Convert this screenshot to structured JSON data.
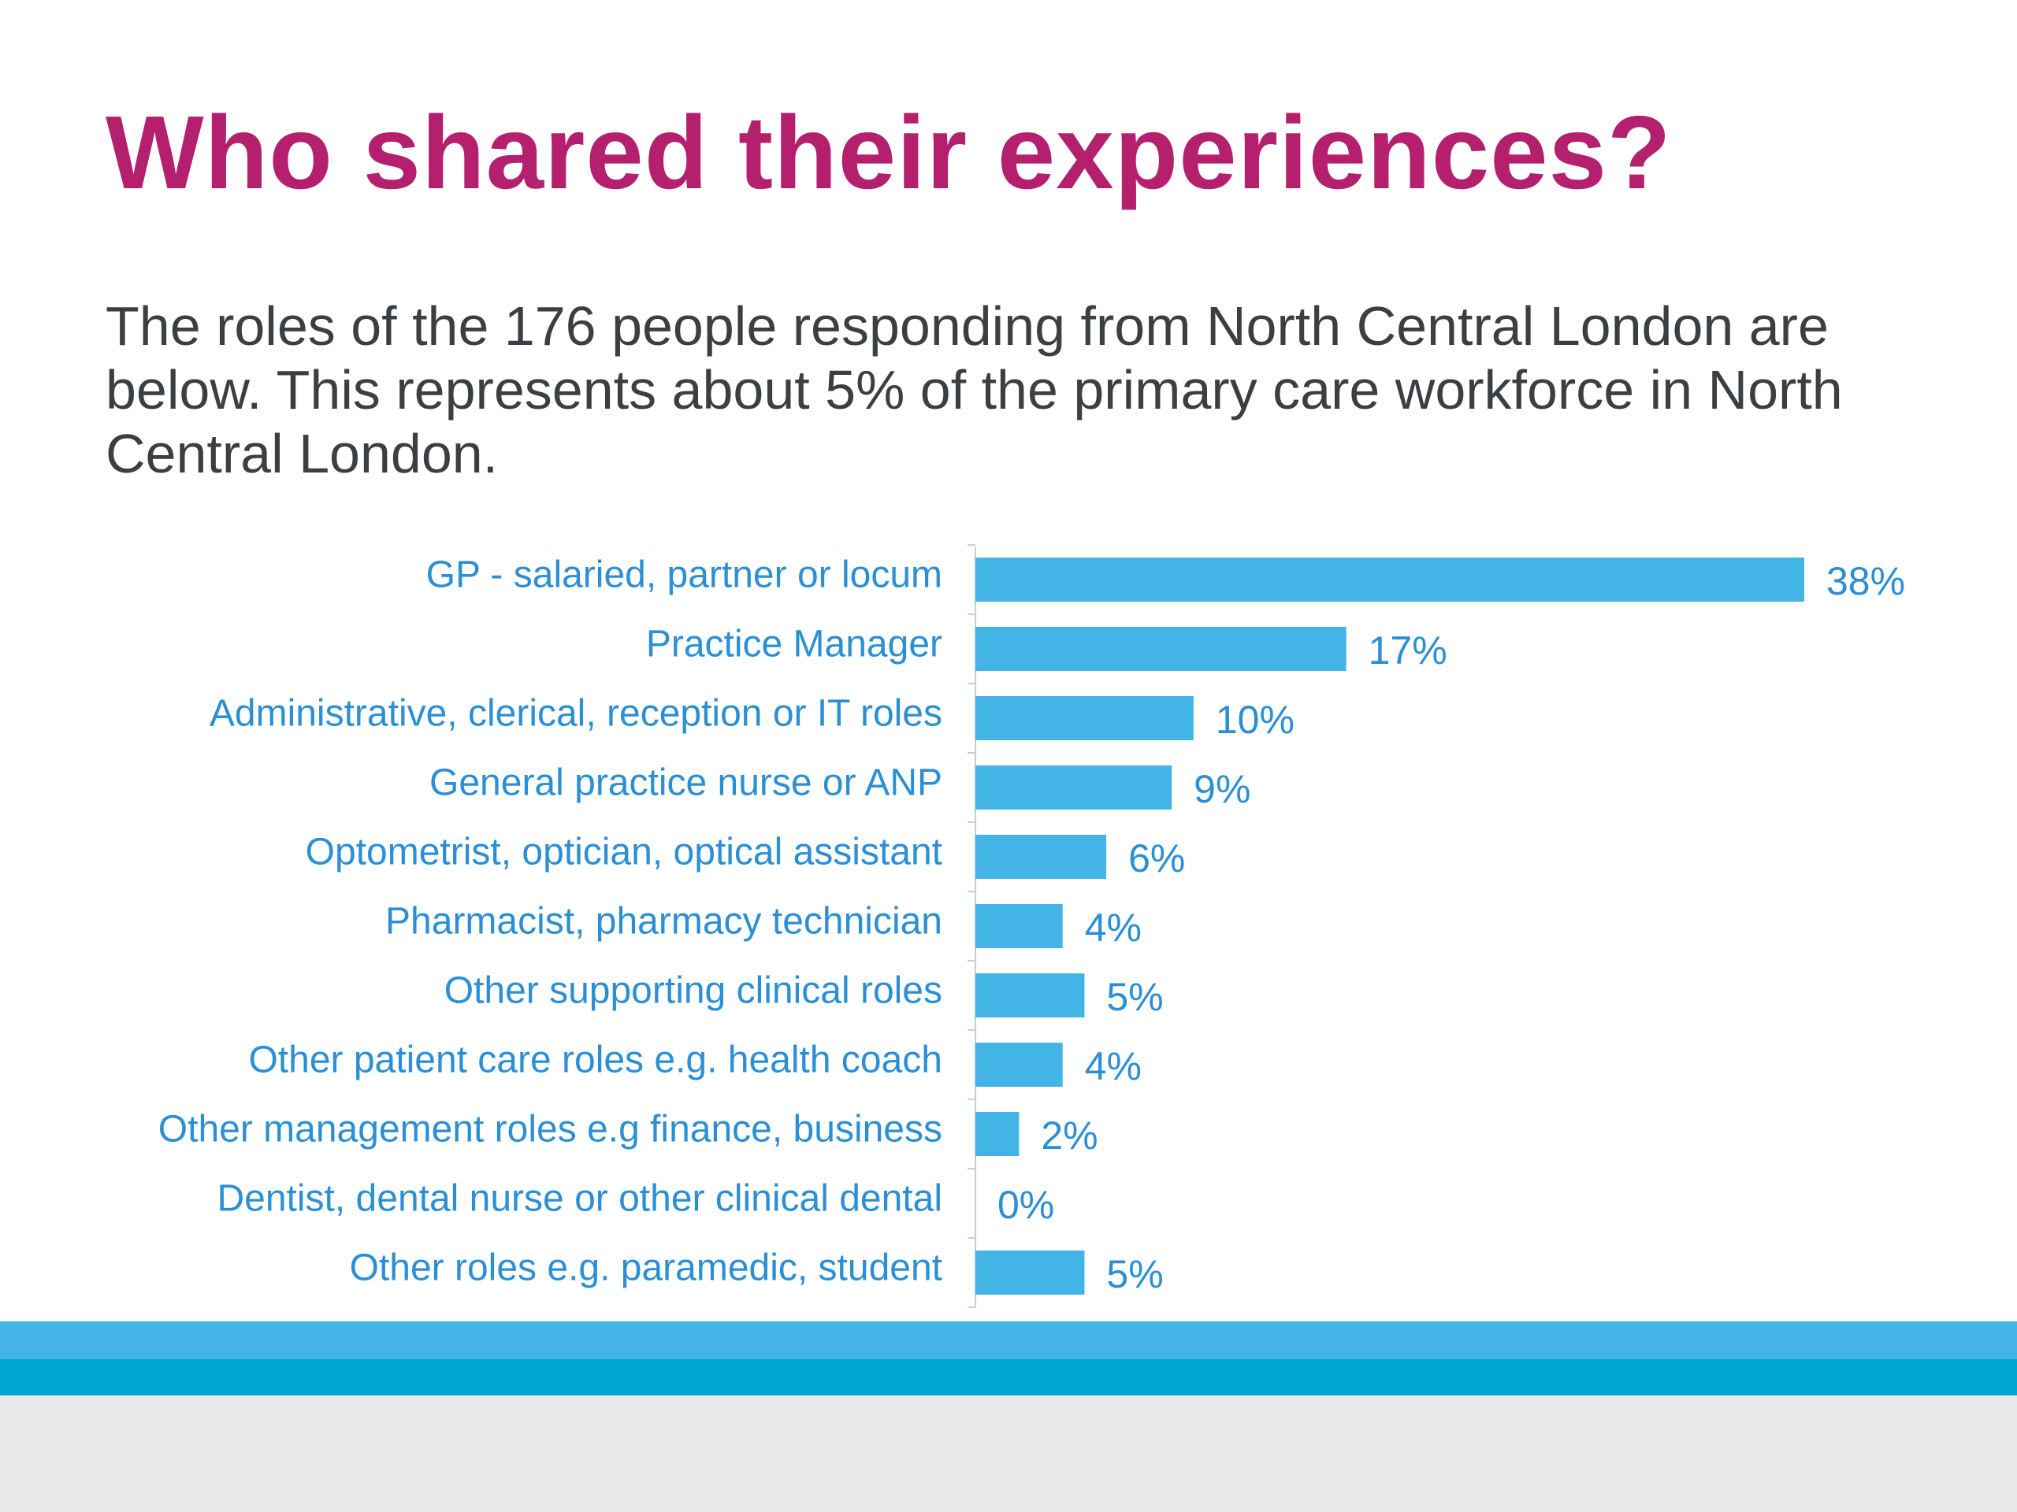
{
  "title": "Who shared their experiences?",
  "subtitle": "The roles of the 176 people responding from North Central London are below. This represents about 5% of the primary care workforce in North Central London.",
  "colors": {
    "title": "#b5206e",
    "subtitle": "#3a3f44",
    "bar": "#43b4e6",
    "label": "#2b8fd6",
    "axis": "#c9ced3",
    "stripe_light": "#43b4e6",
    "stripe_dark": "#00a6d0",
    "footer": "#e9eaec"
  },
  "chart_data": {
    "type": "bar",
    "orientation": "horizontal",
    "categories": [
      "GP - salaried, partner or locum",
      "Practice Manager",
      "Administrative, clerical, reception or IT roles",
      "General practice nurse or ANP",
      "Optometrist, optician, optical assistant",
      "Pharmacist, pharmacy technician",
      "Other supporting clinical roles",
      "Other patient care roles e.g. health coach",
      "Other management roles e.g finance, business",
      "Dentist, dental nurse or other clinical dental",
      "Other roles e.g. paramedic, student"
    ],
    "values": [
      38,
      17,
      10,
      9,
      6,
      4,
      5,
      4,
      2,
      0,
      5
    ],
    "value_labels": [
      "38%",
      "17%",
      "10%",
      "9%",
      "6%",
      "4%",
      "5%",
      "4%",
      "2%",
      "0%",
      "5%"
    ],
    "xlim": [
      0,
      38
    ],
    "grid": false,
    "legend": "none"
  }
}
